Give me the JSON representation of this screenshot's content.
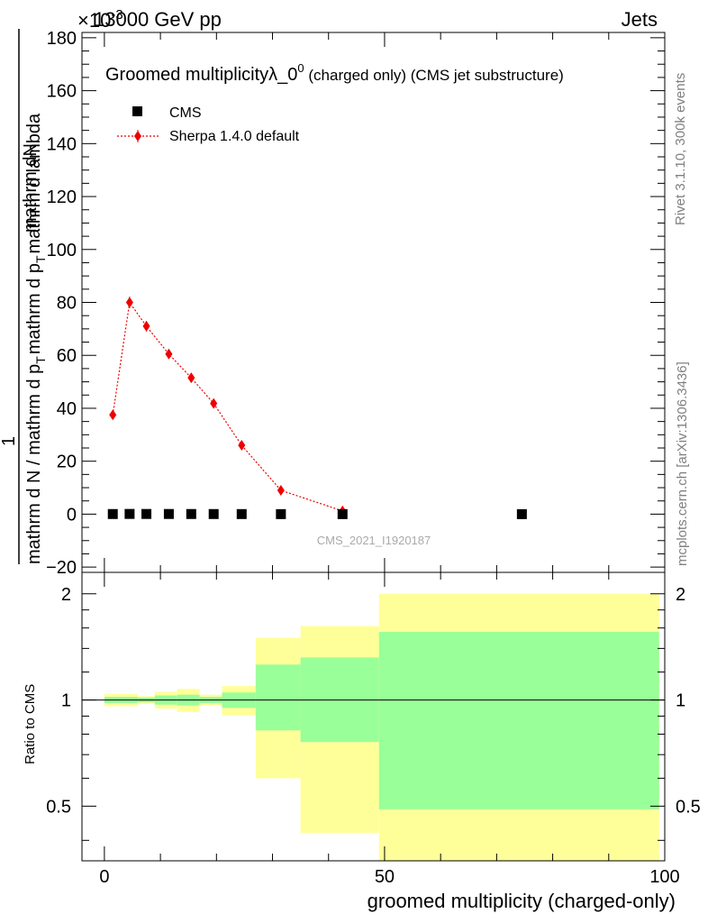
{
  "header": {
    "left_label": "13000 GeV pp",
    "right_label": "Jets",
    "exponent_label": "×10",
    "exponent_power": "-3"
  },
  "side_labels": {
    "rivet": "Rivet 3.1.10,  300k events",
    "mcplots": "mcplots.cern.ch [arXiv:1306.3436]"
  },
  "chart_data": [
    {
      "type": "scatter",
      "title": "Groomed multiplicityλ_0",
      "title_superscript": "0",
      "title_suffix": " (charged only) (CMS jet substructure)",
      "ylabel_top": "mathrm dN",
      "ylabel_bottom": "mathrm d N / mathrm d p",
      "ylabel_bottom_sub": "T",
      "ylabel_bottom_rest": "mathrm d p",
      "ylabel_bottom_sub2": "T",
      "ylabel_bottom_rest2": "mathrm d lambda",
      "ylabel_one": "1",
      "xlim": [
        -4,
        100
      ],
      "ylim": [
        -22,
        182
      ],
      "y_ticks": [
        -20,
        0,
        20,
        40,
        60,
        80,
        100,
        120,
        140,
        160,
        180
      ],
      "y_tick_labels": [
        "−20",
        "0",
        "20",
        "40",
        "60",
        "80",
        "100",
        "120",
        "140",
        "160",
        "180"
      ],
      "watermark": "CMS_2021_I1920187",
      "legend": {
        "placement": "top-left",
        "entries": [
          "CMS",
          "Sherpa 1.4.0 default"
        ]
      },
      "series": [
        {
          "name": "CMS",
          "style": "black-square",
          "color": "#000000",
          "x": [
            1.5,
            4.5,
            7.5,
            11.5,
            15.5,
            19.5,
            24.5,
            31.5,
            42.5,
            74.5
          ],
          "y": [
            0.04,
            0.08,
            0.07,
            0.06,
            0.05,
            0.04,
            0.026,
            0.009,
            0.001,
            0.0
          ]
        },
        {
          "name": "Sherpa 1.4.0 default",
          "style": "red-diamond-dotted",
          "color": "#ee0000",
          "x": [
            1.5,
            4.5,
            7.5,
            11.5,
            15.5,
            19.5,
            24.5,
            31.5,
            42.5
          ],
          "y": [
            37.5,
            80.0,
            71.0,
            60.5,
            51.5,
            41.8,
            26.0,
            9.0,
            1.2
          ],
          "err": [
            1.5,
            2.2,
            2.0,
            1.8,
            1.6,
            1.4,
            1.0,
            0.6,
            0.3
          ]
        }
      ]
    },
    {
      "type": "area",
      "ylabel": "Ratio to CMS",
      "xlabel": "groomed multiplicity (charged-only)",
      "xlim": [
        -4,
        100
      ],
      "ylim": [
        0.35,
        2.3
      ],
      "x_ticks": [
        0,
        50,
        100
      ],
      "x_tick_labels": [
        "0",
        "50",
        "100"
      ],
      "y_ticks": [
        0.5,
        1,
        2
      ],
      "y_tick_labels": [
        "0.5",
        "1",
        "2"
      ],
      "reference_line": 1,
      "bands": {
        "colors": {
          "outer": "#ffff99",
          "inner": "#99ff99"
        },
        "bins": [
          {
            "lo": 0,
            "hi": 3,
            "y1_lo": 0.96,
            "y1_hi": 1.04,
            "y2_lo": 0.98,
            "y2_hi": 1.02
          },
          {
            "lo": 3,
            "hi": 6,
            "y1_lo": 0.96,
            "y1_hi": 1.04,
            "y2_lo": 0.98,
            "y2_hi": 1.02
          },
          {
            "lo": 6,
            "hi": 9,
            "y1_lo": 0.975,
            "y1_hi": 1.025,
            "y2_lo": 0.985,
            "y2_hi": 1.015
          },
          {
            "lo": 9,
            "hi": 13,
            "y1_lo": 0.945,
            "y1_hi": 1.055,
            "y2_lo": 0.97,
            "y2_hi": 1.03
          },
          {
            "lo": 13,
            "hi": 17,
            "y1_lo": 0.925,
            "y1_hi": 1.075,
            "y2_lo": 0.965,
            "y2_hi": 1.035
          },
          {
            "lo": 17,
            "hi": 21,
            "y1_lo": 0.965,
            "y1_hi": 1.035,
            "y2_lo": 0.98,
            "y2_hi": 1.02
          },
          {
            "lo": 21,
            "hi": 27,
            "y1_lo": 0.905,
            "y1_hi": 1.095,
            "y2_lo": 0.95,
            "y2_hi": 1.05
          },
          {
            "lo": 27,
            "hi": 35,
            "y1_lo": 0.6,
            "y1_hi": 1.5,
            "y2_lo": 0.82,
            "y2_hi": 1.26
          },
          {
            "lo": 35,
            "hi": 49,
            "y1_lo": 0.42,
            "y1_hi": 1.62,
            "y2_lo": 0.76,
            "y2_hi": 1.32
          },
          {
            "lo": 49,
            "hi": 99,
            "y1_lo": 0.35,
            "y1_hi": 2.0,
            "y2_lo": 0.49,
            "y2_hi": 1.56
          }
        ]
      }
    }
  ]
}
